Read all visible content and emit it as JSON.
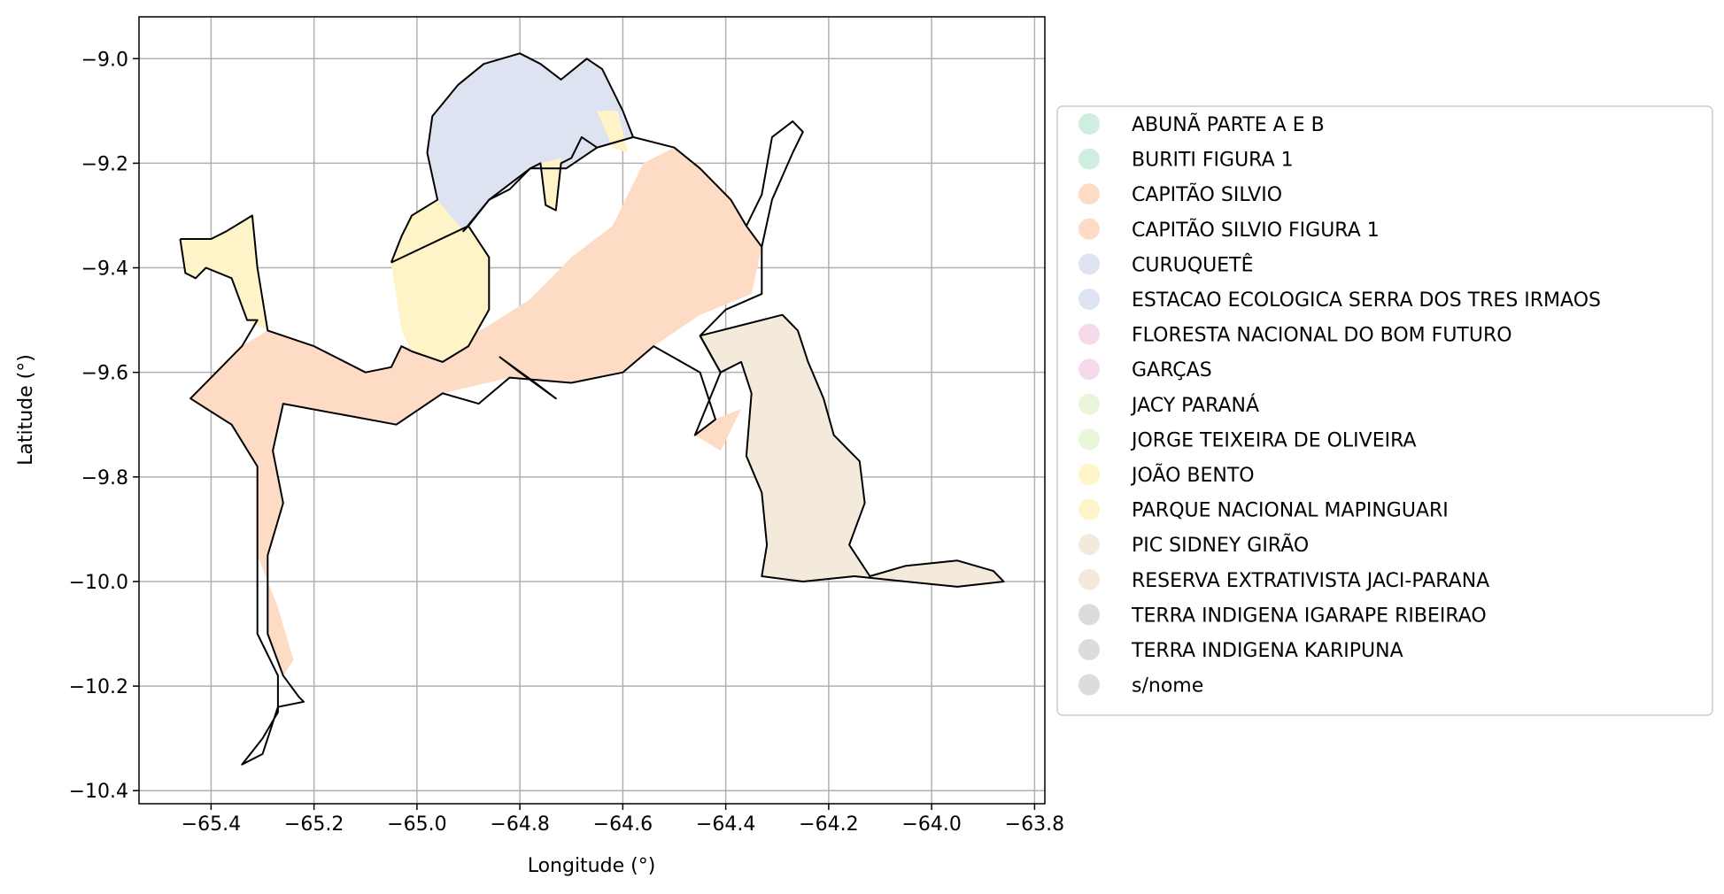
{
  "chart_data": {
    "type": "map",
    "xlabel": "Longitude (°)",
    "ylabel": "Latitude (°)",
    "xlim": [
      -65.54,
      -63.78
    ],
    "ylim": [
      -10.425,
      -8.92
    ],
    "xticks": [
      -65.4,
      -65.2,
      -65.0,
      -64.8,
      -64.6,
      -64.4,
      -64.2,
      -64.0,
      -63.8
    ],
    "yticks": [
      -9.0,
      -9.2,
      -9.4,
      -9.6,
      -9.8,
      -10.0,
      -10.2,
      -10.4
    ],
    "xtick_labels": [
      "−65.4",
      "−65.2",
      "−65.0",
      "−64.8",
      "−64.6",
      "−64.4",
      "−64.2",
      "−64.0",
      "−63.8"
    ],
    "ytick_labels": [
      "−9.0",
      "−9.2",
      "−9.4",
      "−9.6",
      "−9.8",
      "−10.0",
      "−10.2",
      "−10.4"
    ],
    "grid": true,
    "legend_position": "right",
    "legend": [
      {
        "label": "ABUNÃ PARTE A E B",
        "color": "#cfeee0"
      },
      {
        "label": "BURITI FIGURA 1",
        "color": "#cfeee0"
      },
      {
        "label": "CAPITÃO SILVIO",
        "color": "#fddbc5"
      },
      {
        "label": "CAPITÃO SILVIO FIGURA 1",
        "color": "#fddbc5"
      },
      {
        "label": "CURUQUETÊ",
        "color": "#dee3f1"
      },
      {
        "label": "ESTACAO ECOLOGICA SERRA DOS TRES IRMAOS",
        "color": "#dee3f1"
      },
      {
        "label": "FLORESTA NACIONAL DO BOM FUTURO",
        "color": "#f6d9ea"
      },
      {
        "label": "GARÇAS",
        "color": "#f6d9ea"
      },
      {
        "label": "JACY PARANÁ",
        "color": "#eaf6d9"
      },
      {
        "label": "JORGE TEIXEIRA DE OLIVEIRA",
        "color": "#eaf6d9"
      },
      {
        "label": "JOÃO BENTO",
        "color": "#fff4c7"
      },
      {
        "label": "PARQUE NACIONAL MAPINGUARI",
        "color": "#fff4c7"
      },
      {
        "label": "PIC SIDNEY GIRÃO",
        "color": "#f4eadc"
      },
      {
        "label": "RESERVA EXTRATIVISTA JACI-PARANA",
        "color": "#f4eadc"
      },
      {
        "label": "TERRA INDIGENA IGARAPE RIBEIRAO",
        "color": "#dcdcdc"
      },
      {
        "label": "TERRA INDIGENA KARIPUNA",
        "color": "#dcdcdc"
      },
      {
        "label": "s/nome",
        "color": "#dcdcdc"
      }
    ],
    "regions": [
      {
        "fill": "#fff4c7",
        "points": [
          [
            -65.46,
            -9.345
          ],
          [
            -65.4,
            -9.345
          ],
          [
            -65.37,
            -9.33
          ],
          [
            -65.32,
            -9.3
          ],
          [
            -65.31,
            -9.4
          ],
          [
            -65.29,
            -9.52
          ],
          [
            -65.33,
            -9.5
          ],
          [
            -65.36,
            -9.42
          ],
          [
            -65.41,
            -9.4
          ],
          [
            -65.43,
            -9.42
          ],
          [
            -65.45,
            -9.41
          ]
        ]
      },
      {
        "fill": "#fddbc5",
        "points": [
          [
            -65.29,
            -9.52
          ],
          [
            -65.2,
            -9.55
          ],
          [
            -65.1,
            -9.6
          ],
          [
            -65.05,
            -9.59
          ],
          [
            -65.03,
            -9.55
          ],
          [
            -64.95,
            -9.56
          ],
          [
            -64.86,
            -9.51
          ],
          [
            -64.78,
            -9.46
          ],
          [
            -64.7,
            -9.38
          ],
          [
            -64.62,
            -9.32
          ],
          [
            -64.56,
            -9.2
          ],
          [
            -64.5,
            -9.17
          ],
          [
            -64.45,
            -9.21
          ],
          [
            -64.39,
            -9.27
          ],
          [
            -64.36,
            -9.32
          ],
          [
            -64.33,
            -9.36
          ],
          [
            -64.35,
            -9.45
          ],
          [
            -64.45,
            -9.49
          ],
          [
            -64.54,
            -9.55
          ],
          [
            -64.6,
            -9.6
          ],
          [
            -64.7,
            -9.62
          ],
          [
            -64.82,
            -9.61
          ],
          [
            -64.95,
            -9.64
          ],
          [
            -65.04,
            -9.7
          ],
          [
            -65.15,
            -9.68
          ],
          [
            -65.26,
            -9.66
          ],
          [
            -65.28,
            -9.75
          ],
          [
            -65.26,
            -9.85
          ],
          [
            -65.29,
            -9.95
          ],
          [
            -65.29,
            -10.1
          ],
          [
            -65.26,
            -10.18
          ],
          [
            -65.24,
            -10.15
          ],
          [
            -65.27,
            -10.05
          ],
          [
            -65.31,
            -9.95
          ],
          [
            -65.31,
            -9.78
          ],
          [
            -65.36,
            -9.7
          ],
          [
            -65.44,
            -9.65
          ],
          [
            -65.39,
            -9.6
          ],
          [
            -65.34,
            -9.55
          ]
        ]
      },
      {
        "fill": "#fddbc5",
        "points": [
          [
            -64.42,
            -9.69
          ],
          [
            -64.37,
            -9.67
          ],
          [
            -64.41,
            -9.75
          ],
          [
            -64.46,
            -9.72
          ]
        ]
      },
      {
        "fill": "#fff4c7",
        "points": [
          [
            -65.05,
            -9.39
          ],
          [
            -65.03,
            -9.34
          ],
          [
            -65.01,
            -9.3
          ],
          [
            -64.96,
            -9.27
          ],
          [
            -64.9,
            -9.32
          ],
          [
            -64.86,
            -9.38
          ],
          [
            -64.86,
            -9.48
          ],
          [
            -64.9,
            -9.55
          ],
          [
            -64.95,
            -9.58
          ],
          [
            -65.01,
            -9.56
          ],
          [
            -65.03,
            -9.52
          ]
        ]
      },
      {
        "fill": "#dee3f1",
        "points": [
          [
            -64.92,
            -9.05
          ],
          [
            -64.87,
            -9.01
          ],
          [
            -64.8,
            -8.99
          ],
          [
            -64.76,
            -9.01
          ],
          [
            -64.72,
            -9.04
          ],
          [
            -64.67,
            -9.0
          ],
          [
            -64.64,
            -9.02
          ],
          [
            -64.6,
            -9.1
          ],
          [
            -64.58,
            -9.15
          ],
          [
            -64.65,
            -9.17
          ],
          [
            -64.71,
            -9.21
          ],
          [
            -64.78,
            -9.21
          ],
          [
            -64.86,
            -9.27
          ],
          [
            -64.91,
            -9.33
          ],
          [
            -64.96,
            -9.27
          ],
          [
            -64.98,
            -9.18
          ],
          [
            -64.97,
            -9.11
          ]
        ]
      },
      {
        "fill": "#fff4c7",
        "points": [
          [
            -64.65,
            -9.1
          ],
          [
            -64.61,
            -9.1
          ],
          [
            -64.59,
            -9.18
          ],
          [
            -64.62,
            -9.17
          ]
        ]
      },
      {
        "fill": "#fff4c7",
        "points": [
          [
            -64.76,
            -9.2
          ],
          [
            -64.72,
            -9.19
          ],
          [
            -64.73,
            -9.29
          ],
          [
            -64.75,
            -9.28
          ]
        ]
      },
      {
        "fill": "#f4eadc",
        "points": [
          [
            -64.45,
            -9.53
          ],
          [
            -64.37,
            -9.51
          ],
          [
            -64.29,
            -9.49
          ],
          [
            -64.26,
            -9.52
          ],
          [
            -64.24,
            -9.58
          ],
          [
            -64.21,
            -9.65
          ],
          [
            -64.19,
            -9.72
          ],
          [
            -64.14,
            -9.77
          ],
          [
            -64.13,
            -9.85
          ],
          [
            -64.16,
            -9.93
          ],
          [
            -64.12,
            -9.99
          ],
          [
            -64.05,
            -9.97
          ],
          [
            -63.95,
            -9.96
          ],
          [
            -63.88,
            -9.98
          ],
          [
            -63.86,
            -10.0
          ],
          [
            -63.95,
            -10.01
          ],
          [
            -64.05,
            -10.0
          ],
          [
            -64.15,
            -9.99
          ],
          [
            -64.25,
            -10.0
          ],
          [
            -64.33,
            -9.99
          ],
          [
            -64.32,
            -9.93
          ],
          [
            -64.33,
            -9.83
          ],
          [
            -64.36,
            -9.76
          ],
          [
            -64.35,
            -9.64
          ],
          [
            -64.37,
            -9.58
          ],
          [
            -64.41,
            -9.6
          ]
        ]
      }
    ],
    "outlines": [
      [
        [
          -65.46,
          -9.345
        ],
        [
          -65.4,
          -9.345
        ],
        [
          -65.37,
          -9.33
        ],
        [
          -65.32,
          -9.3
        ],
        [
          -65.31,
          -9.4
        ],
        [
          -65.29,
          -9.52
        ],
        [
          -65.2,
          -9.55
        ],
        [
          -65.1,
          -9.6
        ],
        [
          -65.05,
          -9.59
        ],
        [
          -65.03,
          -9.55
        ],
        [
          -65.01,
          -9.56
        ],
        [
          -64.95,
          -9.58
        ],
        [
          -64.9,
          -9.55
        ],
        [
          -64.86,
          -9.48
        ],
        [
          -64.86,
          -9.38
        ],
        [
          -64.9,
          -9.32
        ],
        [
          -64.91,
          -9.33
        ],
        [
          -64.86,
          -9.27
        ],
        [
          -64.78,
          -9.21
        ],
        [
          -64.71,
          -9.21
        ],
        [
          -64.65,
          -9.17
        ],
        [
          -64.58,
          -9.15
        ],
        [
          -64.5,
          -9.17
        ],
        [
          -64.45,
          -9.21
        ],
        [
          -64.39,
          -9.27
        ],
        [
          -64.36,
          -9.32
        ],
        [
          -64.33,
          -9.36
        ],
        [
          -64.33,
          -9.45
        ],
        [
          -64.4,
          -9.48
        ],
        [
          -64.45,
          -9.53
        ],
        [
          -64.41,
          -9.6
        ],
        [
          -64.46,
          -9.72
        ],
        [
          -64.42,
          -9.69
        ],
        [
          -64.45,
          -9.6
        ],
        [
          -64.54,
          -9.55
        ],
        [
          -64.6,
          -9.6
        ],
        [
          -64.7,
          -9.62
        ],
        [
          -64.82,
          -9.61
        ],
        [
          -64.88,
          -9.66
        ],
        [
          -64.95,
          -9.64
        ],
        [
          -65.04,
          -9.7
        ],
        [
          -65.15,
          -9.68
        ],
        [
          -65.26,
          -9.66
        ],
        [
          -65.28,
          -9.75
        ],
        [
          -65.26,
          -9.85
        ],
        [
          -65.29,
          -9.95
        ],
        [
          -65.29,
          -10.1
        ],
        [
          -65.26,
          -10.18
        ],
        [
          -65.23,
          -10.22
        ],
        [
          -65.22,
          -10.23
        ],
        [
          -65.27,
          -10.24
        ],
        [
          -65.3,
          -10.33
        ],
        [
          -65.34,
          -10.35
        ],
        [
          -65.3,
          -10.3
        ],
        [
          -65.27,
          -10.25
        ],
        [
          -65.27,
          -10.18
        ],
        [
          -65.31,
          -10.1
        ],
        [
          -65.31,
          -9.95
        ],
        [
          -65.31,
          -9.78
        ],
        [
          -65.36,
          -9.7
        ],
        [
          -65.44,
          -9.65
        ],
        [
          -65.39,
          -9.6
        ],
        [
          -65.34,
          -9.55
        ],
        [
          -65.31,
          -9.5
        ],
        [
          -65.33,
          -9.5
        ],
        [
          -65.36,
          -9.42
        ],
        [
          -65.41,
          -9.4
        ],
        [
          -65.43,
          -9.42
        ],
        [
          -65.45,
          -9.41
        ],
        [
          -65.46,
          -9.345
        ]
      ],
      [
        [
          -65.05,
          -9.39
        ],
        [
          -65.03,
          -9.34
        ],
        [
          -65.01,
          -9.3
        ],
        [
          -64.96,
          -9.27
        ],
        [
          -64.98,
          -9.18
        ],
        [
          -64.97,
          -9.11
        ],
        [
          -64.92,
          -9.05
        ],
        [
          -64.87,
          -9.01
        ],
        [
          -64.8,
          -8.99
        ],
        [
          -64.76,
          -9.01
        ],
        [
          -64.72,
          -9.04
        ],
        [
          -64.67,
          -9.0
        ],
        [
          -64.64,
          -9.02
        ],
        [
          -64.6,
          -9.1
        ],
        [
          -64.58,
          -9.15
        ],
        [
          -64.65,
          -9.17
        ],
        [
          -64.68,
          -9.15
        ],
        [
          -64.7,
          -9.19
        ],
        [
          -64.72,
          -9.2
        ],
        [
          -64.73,
          -9.29
        ],
        [
          -64.75,
          -9.28
        ],
        [
          -64.76,
          -9.2
        ],
        [
          -64.78,
          -9.21
        ],
        [
          -64.82,
          -9.25
        ],
        [
          -64.86,
          -9.27
        ],
        [
          -64.9,
          -9.32
        ],
        [
          -65.05,
          -9.39
        ]
      ],
      [
        [
          -64.84,
          -9.57
        ],
        [
          -64.8,
          -9.6
        ],
        [
          -64.73,
          -9.65
        ],
        [
          -64.77,
          -9.62
        ],
        [
          -64.84,
          -9.57
        ]
      ],
      [
        [
          -64.45,
          -9.53
        ],
        [
          -64.37,
          -9.51
        ],
        [
          -64.29,
          -9.49
        ],
        [
          -64.26,
          -9.52
        ],
        [
          -64.24,
          -9.58
        ],
        [
          -64.21,
          -9.65
        ],
        [
          -64.19,
          -9.72
        ],
        [
          -64.14,
          -9.77
        ],
        [
          -64.13,
          -9.85
        ],
        [
          -64.16,
          -9.93
        ],
        [
          -64.12,
          -9.99
        ],
        [
          -64.05,
          -9.97
        ],
        [
          -63.95,
          -9.96
        ],
        [
          -63.88,
          -9.98
        ],
        [
          -63.86,
          -10.0
        ],
        [
          -63.95,
          -10.01
        ],
        [
          -64.05,
          -10.0
        ],
        [
          -64.15,
          -9.99
        ],
        [
          -64.25,
          -10.0
        ],
        [
          -64.33,
          -9.99
        ],
        [
          -64.32,
          -9.93
        ],
        [
          -64.33,
          -9.83
        ],
        [
          -64.36,
          -9.76
        ],
        [
          -64.35,
          -9.64
        ],
        [
          -64.37,
          -9.58
        ],
        [
          -64.41,
          -9.6
        ],
        [
          -64.45,
          -9.53
        ]
      ],
      [
        [
          -64.36,
          -9.32
        ],
        [
          -64.33,
          -9.26
        ],
        [
          -64.31,
          -9.15
        ],
        [
          -64.27,
          -9.12
        ],
        [
          -64.25,
          -9.14
        ],
        [
          -64.27,
          -9.18
        ],
        [
          -64.31,
          -9.27
        ],
        [
          -64.33,
          -9.36
        ]
      ]
    ]
  }
}
